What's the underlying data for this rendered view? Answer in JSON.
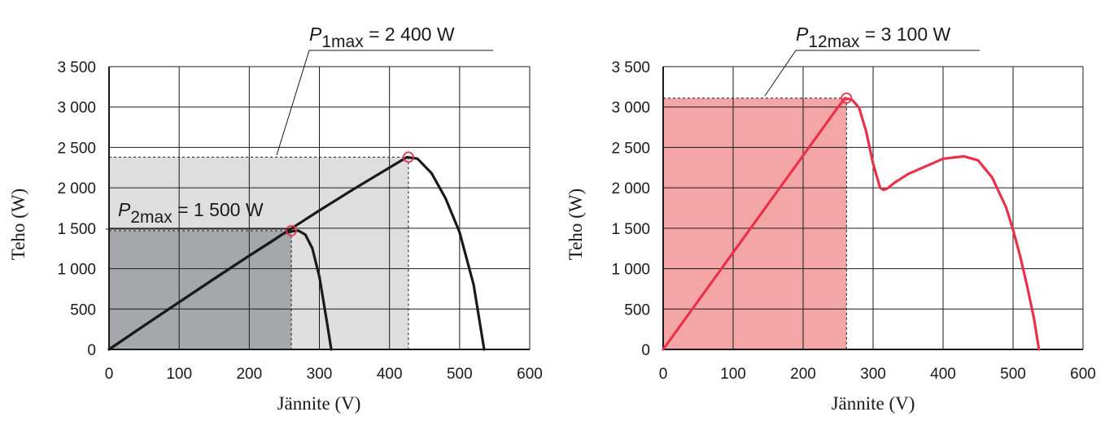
{
  "chart_data": [
    {
      "type": "line",
      "xlabel": "Jännite (V)",
      "ylabel": "Teho (W)",
      "xlim": [
        0,
        600
      ],
      "ylim": [
        0,
        3500
      ],
      "x_ticks": [
        0,
        100,
        200,
        300,
        400,
        500,
        600
      ],
      "y_ticks": [
        0,
        500,
        1000,
        1500,
        2000,
        2500,
        3000,
        3500
      ],
      "x_tick_labels": [
        "0",
        "100",
        "200",
        "300",
        "400",
        "500",
        "600"
      ],
      "y_tick_labels": [
        "0",
        "500",
        "1 000",
        "1 500",
        "2 000",
        "2 500",
        "3 000",
        "3 500"
      ],
      "grid": true,
      "colors": {
        "curve": "#1a1a1a",
        "rect_p1": "#dededf",
        "rect_p2": "#a6a7aa",
        "marker": "#e8324a"
      },
      "series": [
        {
          "x": [
            0,
            50,
            100,
            150,
            200,
            230,
            250,
            260,
            270,
            280,
            290,
            300,
            310,
            317
          ],
          "y": [
            0,
            295,
            585,
            875,
            1160,
            1325,
            1440,
            1460,
            1470,
            1420,
            1250,
            900,
            380,
            0
          ]
        },
        {
          "x": [
            0,
            50,
            100,
            150,
            200,
            250,
            300,
            350,
            400,
            425,
            440,
            460,
            480,
            500,
            520,
            535
          ],
          "y": [
            0,
            295,
            585,
            875,
            1160,
            1440,
            1720,
            1990,
            2250,
            2380,
            2360,
            2180,
            1870,
            1450,
            800,
            0
          ]
        }
      ],
      "max_points": [
        {
          "x": 260,
          "y": 1470,
          "p": "P",
          "sub": "2max",
          "label": " = 1 500 W"
        },
        {
          "x": 427,
          "y": 2380,
          "p": "P",
          "sub": "1max",
          "label": " = 2 400 W"
        }
      ]
    },
    {
      "type": "line",
      "xlabel": "Jännite (V)",
      "ylabel": "Teho (W)",
      "xlim": [
        0,
        600
      ],
      "ylim": [
        0,
        3500
      ],
      "x_ticks": [
        0,
        100,
        200,
        300,
        400,
        500,
        600
      ],
      "y_ticks": [
        0,
        500,
        1000,
        1500,
        2000,
        2500,
        3000,
        3500
      ],
      "x_tick_labels": [
        "0",
        "100",
        "200",
        "300",
        "400",
        "500",
        "600"
      ],
      "y_tick_labels": [
        "0",
        "500",
        "1 000",
        "1 500",
        "2 000",
        "2 500",
        "3 000",
        "3 500"
      ],
      "grid": true,
      "colors": {
        "curve": "#e8324a",
        "rect": "#f4a5a6",
        "marker": "#e8324a"
      },
      "series": [
        {
          "x": [
            0,
            50,
            100,
            150,
            200,
            250,
            260,
            270,
            280,
            290,
            300,
            310,
            315,
            320,
            330,
            350,
            400,
            430,
            450,
            470,
            490,
            500,
            510,
            520,
            530,
            537
          ],
          "y": [
            0,
            600,
            1200,
            1800,
            2400,
            3000,
            3110,
            3090,
            2990,
            2700,
            2300,
            2000,
            1975,
            1990,
            2060,
            2170,
            2360,
            2390,
            2340,
            2130,
            1760,
            1480,
            1160,
            790,
            380,
            0
          ]
        }
      ],
      "max_points": [
        {
          "x": 262,
          "y": 3110,
          "p": "P",
          "sub": "12max",
          "label": " = 3 100 W"
        }
      ]
    }
  ]
}
